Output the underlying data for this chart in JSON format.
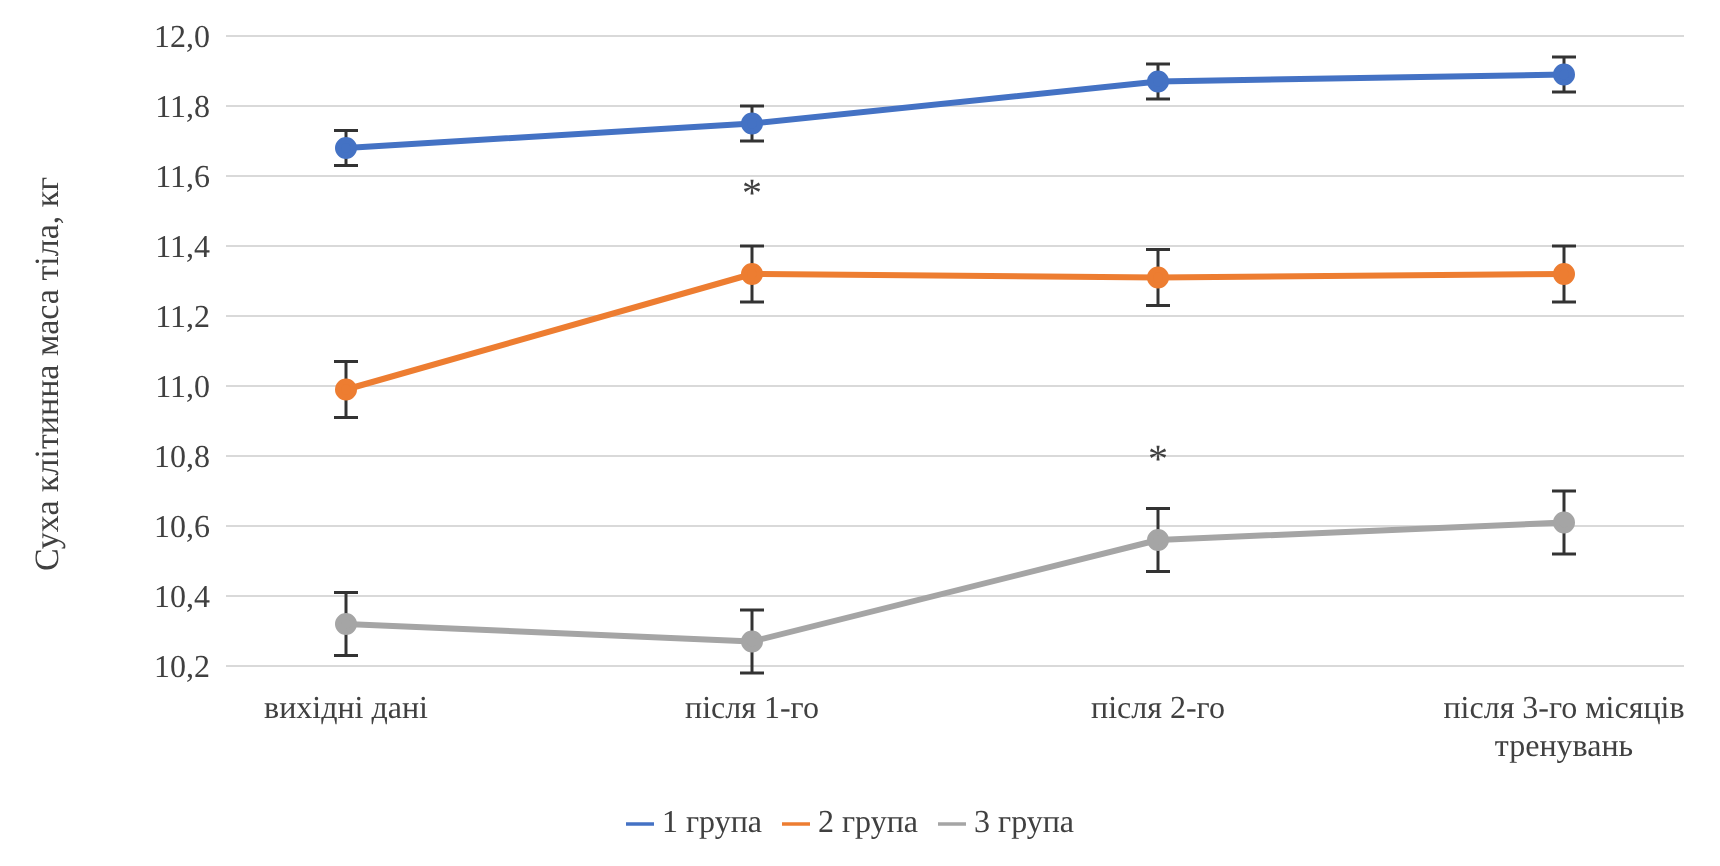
{
  "chart_data": {
    "type": "line",
    "ylabel": "Суха клітинна маса тіла, кг",
    "categories": [
      "вихідні дані",
      "після 1-го",
      "після 2-го",
      "після 3-го місяців тренувань"
    ],
    "series": [
      {
        "name": "1 група",
        "color": "#4472c4",
        "values": [
          11.68,
          11.75,
          11.87,
          11.89
        ],
        "errors": [
          0.05,
          0.05,
          0.05,
          0.05
        ]
      },
      {
        "name": "2 група",
        "color": "#ed7d31",
        "values": [
          10.99,
          11.32,
          11.31,
          11.32
        ],
        "errors": [
          0.08,
          0.08,
          0.08,
          0.08
        ]
      },
      {
        "name": "3 група",
        "color": "#a5a5a5",
        "values": [
          10.32,
          10.27,
          10.56,
          10.61
        ],
        "errors": [
          0.09,
          0.09,
          0.09,
          0.09
        ]
      }
    ],
    "ylim": [
      10.2,
      12.0
    ],
    "yticks": [
      {
        "value": 10.2,
        "label": "10,2"
      },
      {
        "value": 10.4,
        "label": "10,4"
      },
      {
        "value": 10.6,
        "label": "10,6"
      },
      {
        "value": 10.8,
        "label": "10,8"
      },
      {
        "value": 11.0,
        "label": "11,0"
      },
      {
        "value": 11.2,
        "label": "11,2"
      },
      {
        "value": 11.4,
        "label": "11,4"
      },
      {
        "value": 11.6,
        "label": "11,6"
      },
      {
        "value": 11.8,
        "label": "11,8"
      },
      {
        "value": 12.0,
        "label": "12,0"
      }
    ],
    "grid": "y",
    "legend": "bottom",
    "marker": "circle",
    "line_style": "solid",
    "annotations": [
      {
        "text": "*",
        "x": "після 1-го",
        "y": 11.32
      },
      {
        "text": "*",
        "x": "після 2-го",
        "y": 10.56
      }
    ]
  }
}
